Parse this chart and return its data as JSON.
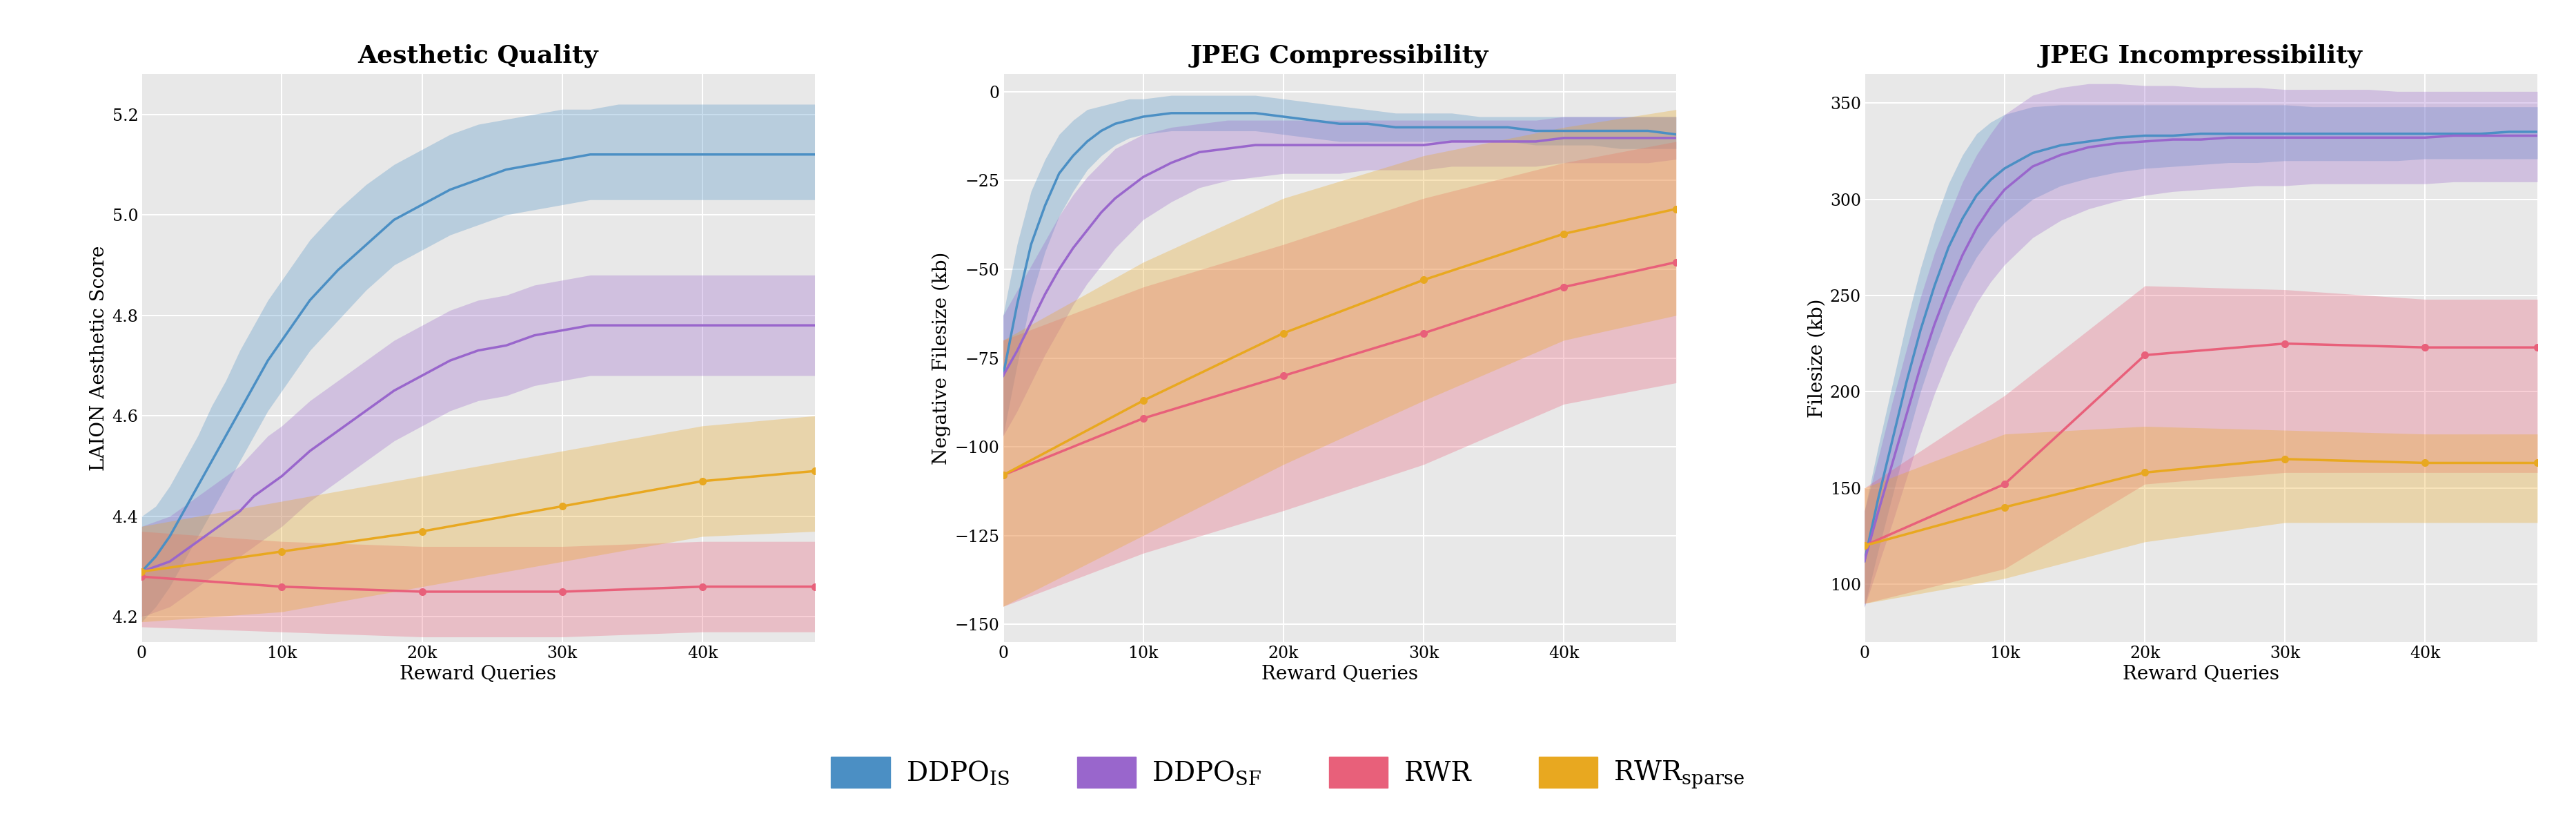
{
  "titles": [
    "Aesthetic Quality",
    "JPEG Compressibility",
    "JPEG Incompressibility"
  ],
  "ylabels": [
    "LAION Aesthetic Score",
    "Negative Filesize (kb)",
    "Filesize (kb)"
  ],
  "xlabel": "Reward Queries",
  "xlim": [
    0,
    48000
  ],
  "xticks": [
    0,
    10000,
    20000,
    30000,
    40000
  ],
  "xticklabels": [
    "0",
    "10k",
    "20k",
    "30k",
    "40k"
  ],
  "colors": {
    "DDPO_IS": "#4b8fc4",
    "DDPO_SF": "#9966cc",
    "RWR": "#e8607a",
    "RWR_sparse": "#e8a820"
  },
  "alpha_fill": 0.3,
  "plot1": {
    "ylim": [
      4.15,
      5.28
    ],
    "yticks": [
      4.2,
      4.4,
      4.6,
      4.8,
      5.0,
      5.2
    ],
    "DDPO_IS": {
      "x": [
        0,
        1000,
        2000,
        3000,
        4000,
        5000,
        6000,
        7000,
        8000,
        9000,
        10000,
        12000,
        14000,
        16000,
        18000,
        20000,
        22000,
        24000,
        26000,
        28000,
        30000,
        32000,
        34000,
        36000,
        38000,
        40000,
        42000,
        44000,
        46000,
        48000
      ],
      "y": [
        4.29,
        4.32,
        4.36,
        4.41,
        4.46,
        4.51,
        4.56,
        4.61,
        4.66,
        4.71,
        4.75,
        4.83,
        4.89,
        4.94,
        4.99,
        5.02,
        5.05,
        5.07,
        5.09,
        5.1,
        5.11,
        5.12,
        5.12,
        5.12,
        5.12,
        5.12,
        5.12,
        5.12,
        5.12,
        5.12
      ],
      "y_low": [
        4.19,
        4.22,
        4.26,
        4.31,
        4.36,
        4.41,
        4.46,
        4.51,
        4.56,
        4.61,
        4.65,
        4.73,
        4.79,
        4.85,
        4.9,
        4.93,
        4.96,
        4.98,
        5.0,
        5.01,
        5.02,
        5.03,
        5.03,
        5.03,
        5.03,
        5.03,
        5.03,
        5.03,
        5.03,
        5.03
      ],
      "y_high": [
        4.4,
        4.42,
        4.46,
        4.51,
        4.56,
        4.62,
        4.67,
        4.73,
        4.78,
        4.83,
        4.87,
        4.95,
        5.01,
        5.06,
        5.1,
        5.13,
        5.16,
        5.18,
        5.19,
        5.2,
        5.21,
        5.21,
        5.22,
        5.22,
        5.22,
        5.22,
        5.22,
        5.22,
        5.22,
        5.22
      ]
    },
    "DDPO_SF": {
      "x": [
        0,
        1000,
        2000,
        3000,
        4000,
        5000,
        6000,
        7000,
        8000,
        9000,
        10000,
        12000,
        14000,
        16000,
        18000,
        20000,
        22000,
        24000,
        26000,
        28000,
        30000,
        32000,
        34000,
        36000,
        38000,
        40000,
        42000,
        44000,
        46000,
        48000
      ],
      "y": [
        4.29,
        4.3,
        4.31,
        4.33,
        4.35,
        4.37,
        4.39,
        4.41,
        4.44,
        4.46,
        4.48,
        4.53,
        4.57,
        4.61,
        4.65,
        4.68,
        4.71,
        4.73,
        4.74,
        4.76,
        4.77,
        4.78,
        4.78,
        4.78,
        4.78,
        4.78,
        4.78,
        4.78,
        4.78,
        4.78
      ],
      "y_low": [
        4.2,
        4.21,
        4.22,
        4.24,
        4.26,
        4.28,
        4.3,
        4.32,
        4.34,
        4.36,
        4.38,
        4.43,
        4.47,
        4.51,
        4.55,
        4.58,
        4.61,
        4.63,
        4.64,
        4.66,
        4.67,
        4.68,
        4.68,
        4.68,
        4.68,
        4.68,
        4.68,
        4.68,
        4.68,
        4.68
      ],
      "y_high": [
        4.38,
        4.39,
        4.4,
        4.42,
        4.44,
        4.46,
        4.48,
        4.5,
        4.53,
        4.56,
        4.58,
        4.63,
        4.67,
        4.71,
        4.75,
        4.78,
        4.81,
        4.83,
        4.84,
        4.86,
        4.87,
        4.88,
        4.88,
        4.88,
        4.88,
        4.88,
        4.88,
        4.88,
        4.88,
        4.88
      ]
    },
    "RWR": {
      "x": [
        0,
        10000,
        20000,
        30000,
        40000,
        48000
      ],
      "y": [
        4.28,
        4.26,
        4.25,
        4.25,
        4.26,
        4.26
      ],
      "y_low": [
        4.18,
        4.17,
        4.16,
        4.16,
        4.17,
        4.17
      ],
      "y_high": [
        4.37,
        4.35,
        4.34,
        4.34,
        4.35,
        4.35
      ]
    },
    "RWR_sparse": {
      "x": [
        0,
        10000,
        20000,
        30000,
        40000,
        48000
      ],
      "y": [
        4.29,
        4.33,
        4.37,
        4.42,
        4.47,
        4.49
      ],
      "y_low": [
        4.19,
        4.21,
        4.26,
        4.31,
        4.36,
        4.37
      ],
      "y_high": [
        4.38,
        4.43,
        4.48,
        4.53,
        4.58,
        4.6
      ]
    }
  },
  "plot2": {
    "ylim": [
      -155,
      5
    ],
    "yticks": [
      0,
      -25,
      -50,
      -75,
      -100,
      -125,
      -150
    ],
    "DDPO_IS": {
      "x": [
        0,
        1000,
        2000,
        3000,
        4000,
        5000,
        6000,
        7000,
        8000,
        9000,
        10000,
        12000,
        14000,
        16000,
        18000,
        20000,
        22000,
        24000,
        26000,
        28000,
        30000,
        32000,
        34000,
        36000,
        38000,
        40000,
        42000,
        44000,
        46000,
        48000
      ],
      "y": [
        -80,
        -60,
        -43,
        -32,
        -23,
        -18,
        -14,
        -11,
        -9,
        -8,
        -7,
        -6,
        -6,
        -6,
        -6,
        -7,
        -8,
        -9,
        -9,
        -10,
        -10,
        -10,
        -10,
        -10,
        -11,
        -11,
        -11,
        -11,
        -11,
        -12
      ],
      "y_low": [
        -97,
        -77,
        -58,
        -45,
        -35,
        -28,
        -22,
        -18,
        -15,
        -13,
        -12,
        -11,
        -11,
        -11,
        -11,
        -12,
        -13,
        -14,
        -14,
        -14,
        -14,
        -14,
        -14,
        -14,
        -15,
        -15,
        -15,
        -16,
        -16,
        -16
      ],
      "y_high": [
        -63,
        -43,
        -28,
        -19,
        -12,
        -8,
        -5,
        -4,
        -3,
        -2,
        -2,
        -1,
        -1,
        -1,
        -1,
        -2,
        -3,
        -4,
        -5,
        -6,
        -6,
        -6,
        -7,
        -7,
        -7,
        -7,
        -7,
        -7,
        -7,
        -7
      ]
    },
    "DDPO_SF": {
      "x": [
        0,
        1000,
        2000,
        3000,
        4000,
        5000,
        6000,
        7000,
        8000,
        9000,
        10000,
        12000,
        14000,
        16000,
        18000,
        20000,
        22000,
        24000,
        26000,
        28000,
        30000,
        32000,
        34000,
        36000,
        38000,
        40000,
        42000,
        44000,
        46000,
        48000
      ],
      "y": [
        -80,
        -73,
        -65,
        -57,
        -50,
        -44,
        -39,
        -34,
        -30,
        -27,
        -24,
        -20,
        -17,
        -16,
        -15,
        -15,
        -15,
        -15,
        -15,
        -15,
        -15,
        -14,
        -14,
        -14,
        -14,
        -13,
        -13,
        -13,
        -13,
        -13
      ],
      "y_low": [
        -97,
        -90,
        -82,
        -74,
        -67,
        -60,
        -54,
        -49,
        -44,
        -40,
        -36,
        -31,
        -27,
        -25,
        -24,
        -23,
        -23,
        -23,
        -22,
        -22,
        -22,
        -21,
        -21,
        -21,
        -21,
        -20,
        -20,
        -20,
        -20,
        -19
      ],
      "y_high": [
        -63,
        -56,
        -49,
        -42,
        -35,
        -29,
        -24,
        -20,
        -16,
        -14,
        -12,
        -10,
        -9,
        -8,
        -8,
        -8,
        -8,
        -8,
        -8,
        -8,
        -8,
        -8,
        -8,
        -8,
        -8,
        -7,
        -7,
        -7,
        -7,
        -7
      ]
    },
    "RWR": {
      "x": [
        0,
        10000,
        20000,
        30000,
        40000,
        48000
      ],
      "y": [
        -108,
        -92,
        -80,
        -68,
        -55,
        -48
      ],
      "y_low": [
        -145,
        -130,
        -118,
        -105,
        -88,
        -82
      ],
      "y_high": [
        -70,
        -55,
        -43,
        -30,
        -20,
        -14
      ]
    },
    "RWR_sparse": {
      "x": [
        0,
        10000,
        20000,
        30000,
        40000,
        48000
      ],
      "y": [
        -108,
        -87,
        -68,
        -53,
        -40,
        -33
      ],
      "y_low": [
        -145,
        -125,
        -105,
        -87,
        -70,
        -63
      ],
      "y_high": [
        -70,
        -48,
        -30,
        -18,
        -10,
        -5
      ]
    }
  },
  "plot3": {
    "ylim": [
      70,
      365
    ],
    "yticks": [
      100,
      150,
      200,
      250,
      300,
      350
    ],
    "DDPO_IS": {
      "x": [
        0,
        1000,
        2000,
        3000,
        4000,
        5000,
        6000,
        7000,
        8000,
        9000,
        10000,
        12000,
        14000,
        16000,
        18000,
        20000,
        22000,
        24000,
        26000,
        28000,
        30000,
        32000,
        34000,
        36000,
        38000,
        40000,
        42000,
        44000,
        46000,
        48000
      ],
      "y": [
        112,
        145,
        175,
        205,
        232,
        255,
        275,
        290,
        302,
        310,
        316,
        324,
        328,
        330,
        332,
        333,
        333,
        334,
        334,
        334,
        334,
        334,
        334,
        334,
        334,
        334,
        334,
        334,
        335,
        335
      ],
      "y_low": [
        88,
        118,
        146,
        174,
        200,
        222,
        241,
        257,
        270,
        280,
        288,
        300,
        307,
        311,
        314,
        316,
        317,
        318,
        319,
        319,
        320,
        320,
        320,
        320,
        320,
        321,
        321,
        321,
        321,
        321
      ],
      "y_high": [
        138,
        172,
        204,
        236,
        264,
        288,
        308,
        323,
        334,
        340,
        344,
        348,
        349,
        349,
        349,
        349,
        349,
        349,
        349,
        349,
        349,
        348,
        348,
        348,
        348,
        348,
        348,
        348,
        348,
        348
      ]
    },
    "DDPO_SF": {
      "x": [
        0,
        1000,
        2000,
        3000,
        4000,
        5000,
        6000,
        7000,
        8000,
        9000,
        10000,
        12000,
        14000,
        16000,
        18000,
        20000,
        22000,
        24000,
        26000,
        28000,
        30000,
        32000,
        34000,
        36000,
        38000,
        40000,
        42000,
        44000,
        46000,
        48000
      ],
      "y": [
        112,
        138,
        163,
        188,
        213,
        235,
        254,
        271,
        285,
        296,
        305,
        317,
        323,
        327,
        329,
        330,
        331,
        331,
        332,
        332,
        332,
        332,
        332,
        332,
        332,
        332,
        333,
        333,
        333,
        333
      ],
      "y_low": [
        88,
        110,
        132,
        155,
        178,
        199,
        217,
        232,
        246,
        257,
        266,
        280,
        289,
        295,
        299,
        302,
        304,
        305,
        306,
        307,
        307,
        308,
        308,
        308,
        308,
        308,
        309,
        309,
        309,
        309
      ],
      "y_high": [
        138,
        166,
        195,
        222,
        249,
        272,
        291,
        309,
        323,
        334,
        344,
        354,
        358,
        360,
        360,
        359,
        359,
        358,
        358,
        358,
        357,
        357,
        357,
        357,
        356,
        356,
        356,
        356,
        356,
        356
      ]
    },
    "RWR": {
      "x": [
        0,
        10000,
        20000,
        30000,
        40000,
        48000
      ],
      "y": [
        120,
        152,
        219,
        225,
        223,
        223
      ],
      "y_low": [
        90,
        108,
        152,
        158,
        158,
        158
      ],
      "y_high": [
        150,
        198,
        255,
        253,
        248,
        248
      ]
    },
    "RWR_sparse": {
      "x": [
        0,
        10000,
        20000,
        30000,
        40000,
        48000
      ],
      "y": [
        120,
        140,
        158,
        165,
        163,
        163
      ],
      "y_low": [
        90,
        103,
        122,
        132,
        132,
        132
      ],
      "y_high": [
        150,
        178,
        182,
        180,
        178,
        178
      ]
    }
  },
  "legend": {
    "DDPO_IS": "DDPO$_\\mathrm{IS}$",
    "DDPO_SF": "DDPO$_\\mathrm{SF}$",
    "RWR": "RWR",
    "RWR_sparse": "RWR$_\\mathrm{sparse}$"
  },
  "background_color": "#e8e8e8",
  "title_fontsize": 26,
  "label_fontsize": 20,
  "tick_fontsize": 17,
  "legend_fontsize": 28
}
